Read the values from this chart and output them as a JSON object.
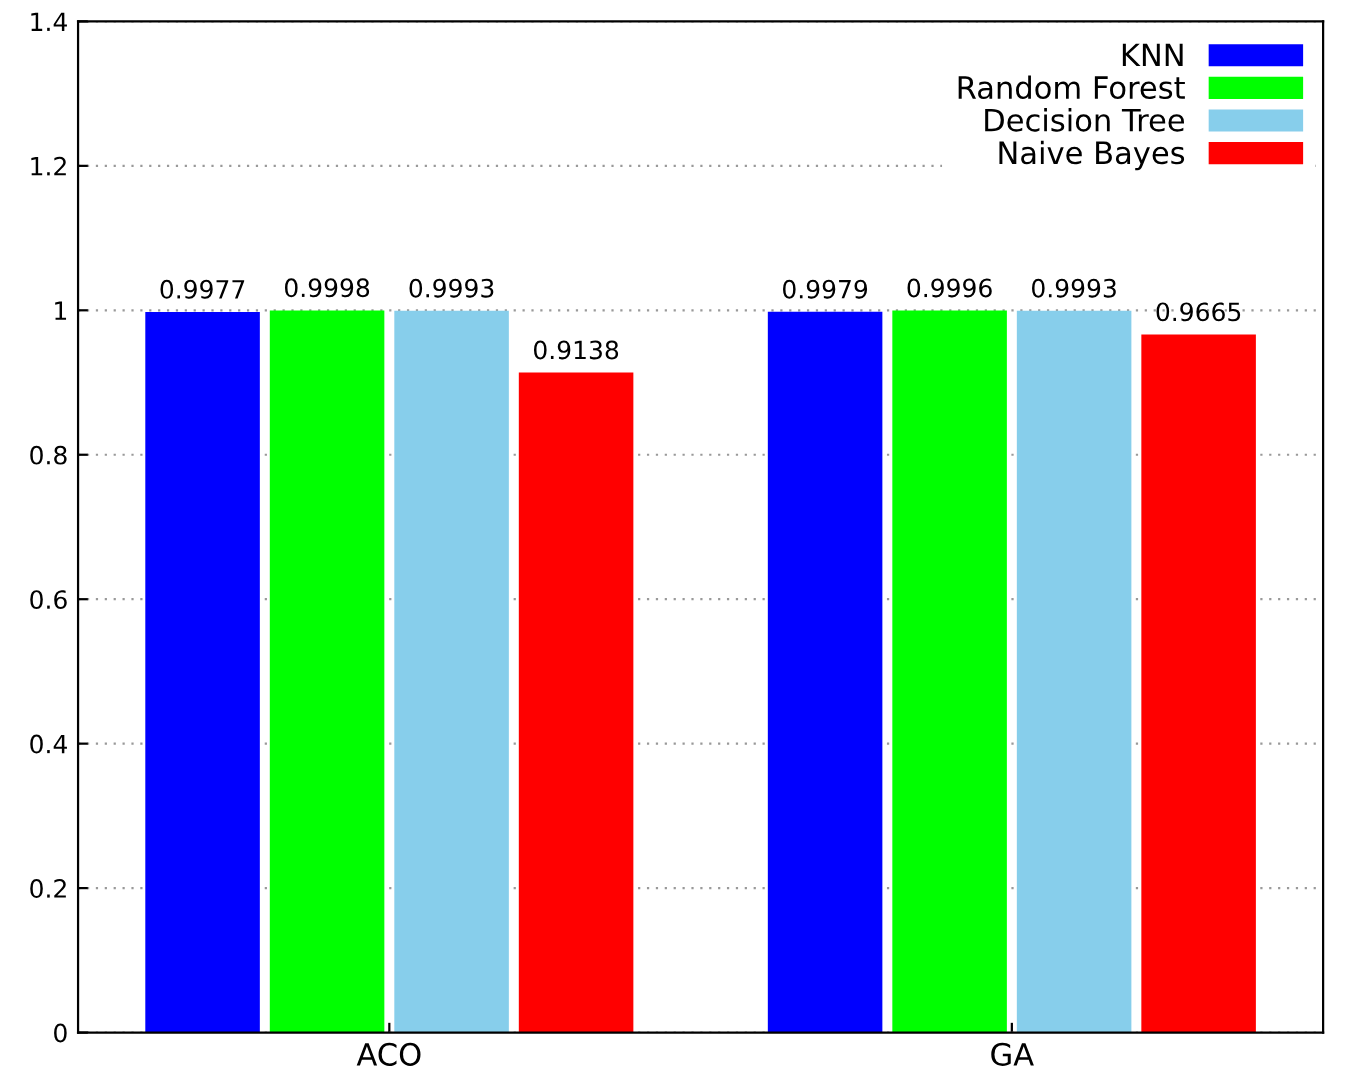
{
  "chart_data": {
    "type": "bar",
    "categories": [
      "ACO",
      "GA"
    ],
    "series": [
      {
        "name": "KNN",
        "color": "#0000ff",
        "values": [
          0.9977,
          0.9979
        ]
      },
      {
        "name": "Random Forest",
        "color": "#00ff00",
        "values": [
          0.9998,
          0.9996
        ]
      },
      {
        "name": "Decision Tree",
        "color": "#87ceeb",
        "values": [
          0.9993,
          0.9993
        ]
      },
      {
        "name": "Naive Bayes",
        "color": "#ff0000",
        "values": [
          0.9138,
          0.9665
        ]
      }
    ],
    "ylim": [
      0,
      1.4
    ],
    "yticks": [
      0,
      0.2,
      0.4,
      0.6,
      0.8,
      1,
      1.2,
      1.4
    ],
    "grid": "y",
    "legend": "top right",
    "data_labels": true
  }
}
